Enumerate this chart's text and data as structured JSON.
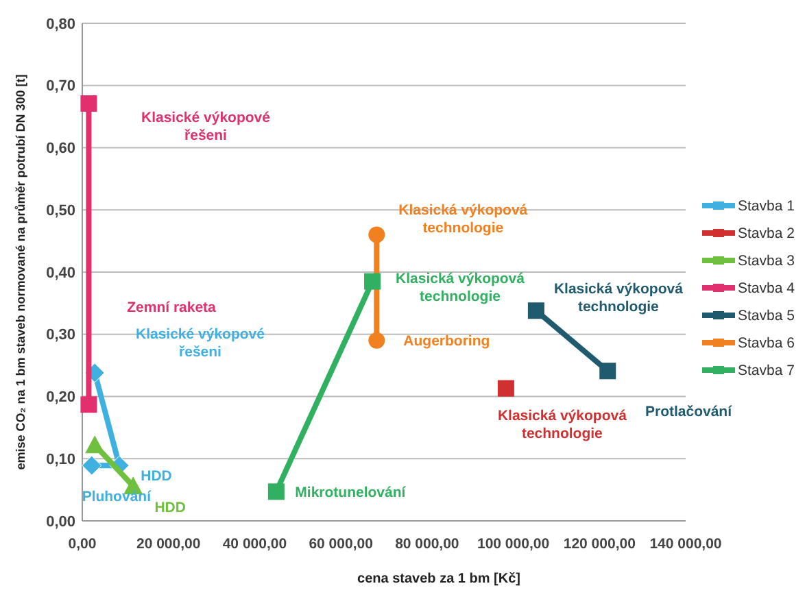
{
  "chart_data": {
    "type": "line",
    "xlabel": "cena staveb za 1 bm [Kč]",
    "ylabel": "emise CO₂ na 1 bm staveb normované na průměr potrubí DN 300 [t]",
    "xlim": [
      0,
      140000
    ],
    "xticks": [
      {
        "value": 0,
        "label": "0,00"
      },
      {
        "value": 20000,
        "label": "20 000,00"
      },
      {
        "value": 40000,
        "label": "40 000,00"
      },
      {
        "value": 60000,
        "label": "60 000,00"
      },
      {
        "value": 80000,
        "label": "80 000,00"
      },
      {
        "value": 100000,
        "label": "100 000,00"
      },
      {
        "value": 120000,
        "label": "120 000,00"
      },
      {
        "value": 140000,
        "label": "140 000,00"
      }
    ],
    "ylim": [
      0,
      0.8
    ],
    "yticks": [
      {
        "value": 0,
        "label": "0,00"
      },
      {
        "value": 0.1,
        "label": "0,10"
      },
      {
        "value": 0.2,
        "label": "0,20"
      },
      {
        "value": 0.3,
        "label": "0,30"
      },
      {
        "value": 0.4,
        "label": "0,40"
      },
      {
        "value": 0.5,
        "label": "0,50"
      },
      {
        "value": 0.6,
        "label": "0,60"
      },
      {
        "value": 0.7,
        "label": "0,70"
      },
      {
        "value": 0.8,
        "label": "0,80"
      }
    ],
    "grid": "y",
    "legend": "right",
    "series": [
      {
        "name": "Stavba 1",
        "color": "#3fb0e0",
        "marker": "diamond",
        "x": [
          2200,
          8600,
          2900
        ],
        "values": [
          0.089,
          0.089,
          0.238
        ]
      },
      {
        "name": "Stavba 2",
        "color": "#d03030",
        "marker": "square",
        "x": [
          98300
        ],
        "values": [
          0.213
        ]
      },
      {
        "name": "Stavba 3",
        "color": "#70c040",
        "marker": "triangle",
        "x": [
          2900,
          11800
        ],
        "values": [
          0.122,
          0.056
        ]
      },
      {
        "name": "Stavba 4",
        "color": "#e0306e",
        "marker": "square",
        "x": [
          1500,
          1500
        ],
        "values": [
          0.671,
          0.187
        ]
      },
      {
        "name": "Stavba 5",
        "color": "#1f5a6e",
        "marker": "square",
        "x": [
          105300,
          121900
        ],
        "values": [
          0.338,
          0.241
        ]
      },
      {
        "name": "Stavba 6",
        "color": "#f08020",
        "marker": "circle",
        "x": [
          68300,
          68300
        ],
        "values": [
          0.46,
          0.29
        ]
      },
      {
        "name": "Stavba 7",
        "color": "#30b060",
        "marker": "square",
        "x": [
          45000,
          67300
        ],
        "values": [
          0.047,
          0.385
        ]
      }
    ],
    "annotations": [
      "Klasické výkopové řešeni",
      "Zemní raketa",
      "Klasické výkopové řešeni",
      {
        "text": "HDD",
        "x": 8600,
        "y": 0.089
      },
      {
        "text": "Pluhování",
        "x": 2200,
        "y": 0.089
      },
      {
        "text": "HDD",
        "x": 11800,
        "y": 0.056
      },
      {
        "text": "Mikrotunelování",
        "x": 45000,
        "y": 0.047
      },
      {
        "text": "Klasická výkopová technologie",
        "x": 67300,
        "y": 0.385
      },
      {
        "text": "Klasická výkopová technologie",
        "x": 68300,
        "y": 0.46
      },
      {
        "text": "Augerboring",
        "x": 68300,
        "y": 0.29
      },
      {
        "text": "Klasická výkopová technologie",
        "x": 105300,
        "y": 0.338
      },
      "Protlačování",
      {
        "text": "Klasická výkopová technologie",
        "x": 98300,
        "y": 0.213
      }
    ]
  }
}
